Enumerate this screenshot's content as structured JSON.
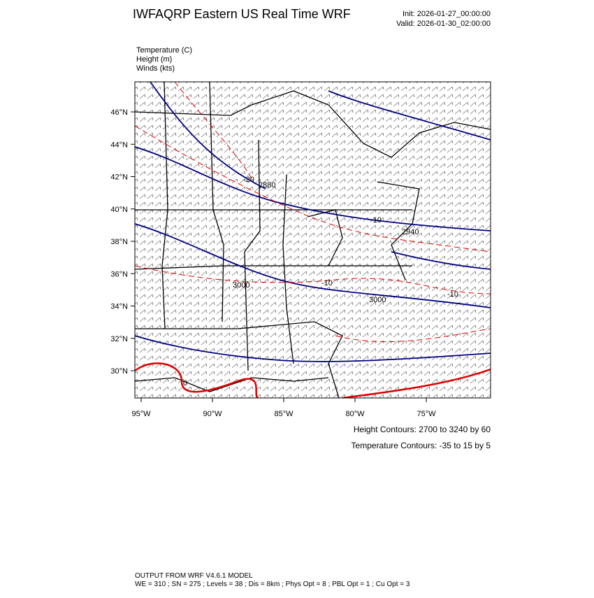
{
  "header": {
    "title": "IWFAQRP Eastern US Real Time WRF",
    "init": "Init: 2026-01-27_00:00:00",
    "valid": "Valid: 2026-01-30_02:00:00"
  },
  "fields": [
    "Temperature   (C)",
    "Height   (m)",
    "Winds   (kts)"
  ],
  "map": {
    "lat_labels": [
      "46°N",
      "44°N",
      "42°N",
      "40°N",
      "38°N",
      "36°N",
      "34°N",
      "32°N",
      "30°N"
    ],
    "lon_labels": [
      "95°W",
      "90°W",
      "85°W",
      "80°W",
      "75°W"
    ],
    "contour_labels": [
      "2880",
      "3000",
      "3000",
      "2940",
      "-20",
      "-10",
      "-10",
      "-10",
      "0"
    ]
  },
  "legend": {
    "height": "Height Contours: 2700 to 3240 by 60",
    "temperature": "Temperature Contours: -35 to 15 by 5"
  },
  "footer": {
    "line1": "OUTPUT FROM WRF V4.6.1 MODEL",
    "line2": "WE = 310 ; SN = 275 ; Levels = 38 ; Dis = 8km ; Phys Opt = 8 ; PBL Opt = 1 ; Cu Opt = 3"
  }
}
